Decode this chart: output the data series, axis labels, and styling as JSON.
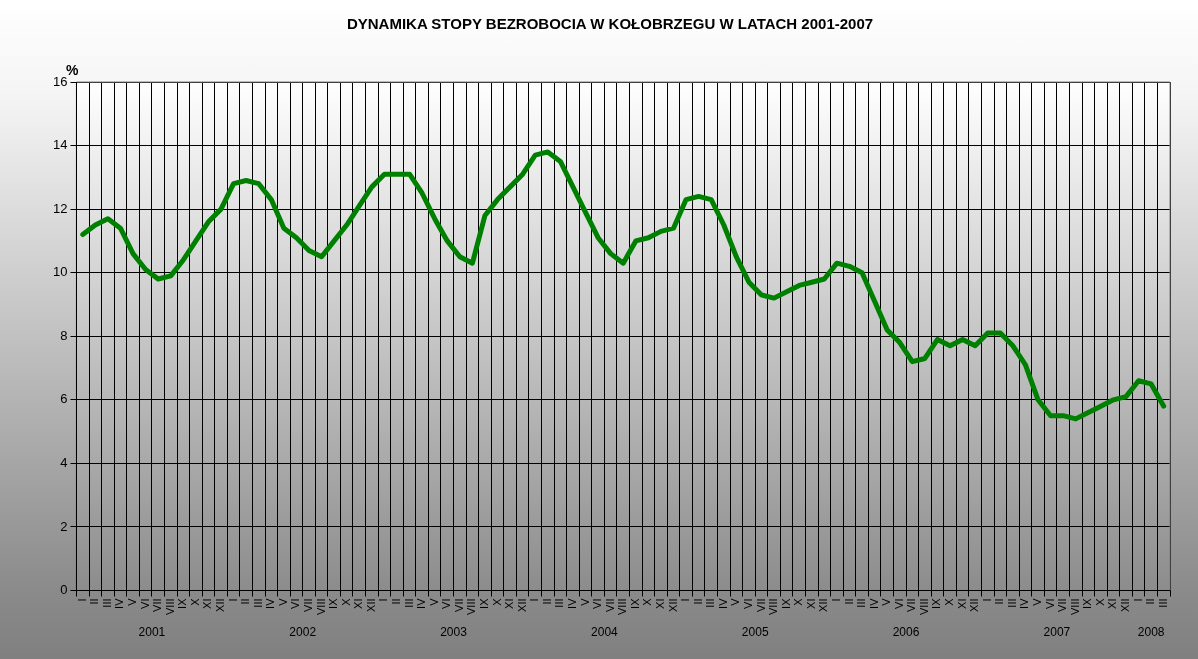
{
  "chart_data": {
    "type": "line",
    "title": "DYNAMIKA STOPY BEZROBOCIA W KOŁOBRZEGU W LATACH 2001-2007",
    "ylabel": "%",
    "categories": [
      "I",
      "II",
      "III",
      "IV",
      "V",
      "VI",
      "VII",
      "VIII",
      "IX",
      "X",
      "XI",
      "XII",
      "I",
      "II",
      "III",
      "IV",
      "V",
      "VI",
      "VII",
      "VIII",
      "IX",
      "X",
      "XI",
      "XII",
      "I",
      "II",
      "III",
      "IV",
      "V",
      "VI",
      "VII",
      "VIII",
      "IX",
      "X",
      "XI",
      "XII",
      "I",
      "II",
      "III",
      "IV",
      "V",
      "VI",
      "VII",
      "VIII",
      "IX",
      "X",
      "XI",
      "XII",
      "I",
      "II",
      "III",
      "IV",
      "V",
      "VI",
      "VII",
      "VIII",
      "IX",
      "X",
      "XI",
      "XII",
      "I",
      "II",
      "III",
      "IV",
      "V",
      "VI",
      "VII",
      "VIII",
      "IX",
      "X",
      "XI",
      "XII",
      "I",
      "II",
      "III",
      "IV",
      "V",
      "VI",
      "VII",
      "VIII",
      "IX",
      "X",
      "XI",
      "XII",
      "I",
      "II",
      "III"
    ],
    "series": [
      {
        "color": "#008000",
        "values": [
          11.2,
          11.5,
          11.7,
          11.4,
          10.6,
          10.1,
          9.8,
          9.9,
          10.4,
          11.0,
          11.6,
          12.0,
          12.8,
          12.9,
          12.8,
          12.3,
          11.4,
          11.1,
          10.7,
          10.5,
          11.0,
          11.5,
          12.1,
          12.7,
          13.1,
          13.1,
          13.1,
          12.5,
          11.7,
          11.0,
          10.5,
          10.3,
          11.8,
          12.3,
          12.7,
          13.1,
          13.7,
          13.8,
          13.5,
          12.7,
          11.9,
          11.1,
          10.6,
          10.3,
          11.0,
          11.1,
          11.3,
          11.4,
          12.3,
          12.4,
          12.3,
          11.5,
          10.5,
          9.7,
          9.3,
          9.2,
          9.4,
          9.6,
          9.7,
          9.8,
          10.3,
          10.2,
          10.0,
          9.1,
          8.2,
          7.8,
          7.2,
          7.3,
          7.9,
          7.7,
          7.9,
          7.7,
          8.1,
          8.1,
          7.7,
          7.1,
          6.0,
          5.5,
          5.5,
          5.4,
          5.6,
          5.8,
          6.0,
          6.1,
          6.6,
          6.5,
          5.8
        ]
      }
    ],
    "ylim": [
      0,
      16
    ],
    "yticks": [
      0,
      2,
      4,
      6,
      8,
      10,
      12,
      14,
      16
    ],
    "grid": true,
    "legend": false,
    "marker": "none",
    "line_style": "solid",
    "annotations": [
      "2001",
      "2002",
      "2003",
      "2004",
      "2005",
      "2006",
      "2007",
      "2008"
    ]
  }
}
